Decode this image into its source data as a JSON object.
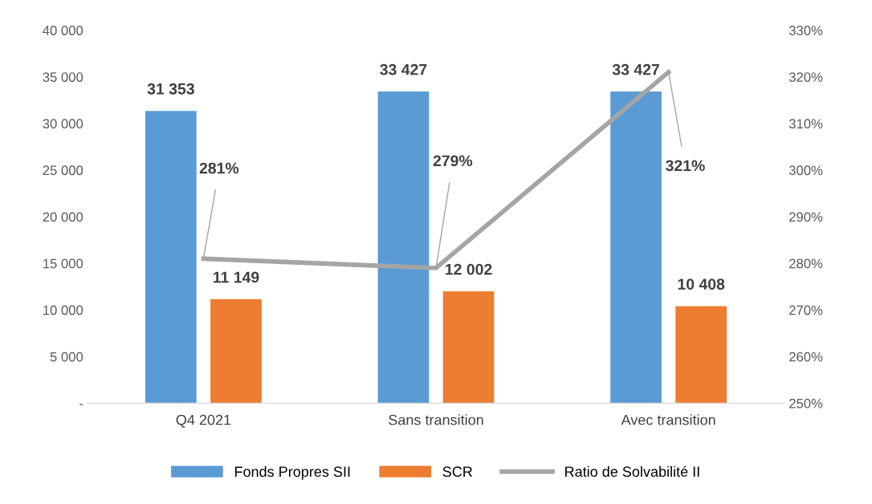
{
  "chart_data": {
    "type": "bar",
    "categories": [
      "Q4 2021",
      "Sans transition",
      "Avec transition"
    ],
    "series": [
      {
        "name": "Fonds Propres SII",
        "color": "#5b9bd5",
        "values": [
          31353,
          33427,
          33427
        ],
        "value_labels": [
          "31 353",
          "33 427",
          "33 427"
        ]
      },
      {
        "name": "SCR",
        "color": "#ed7d31",
        "values": [
          11149,
          12002,
          10408
        ],
        "value_labels": [
          "11 149",
          "12 002",
          "10 408"
        ]
      },
      {
        "name": "Ratio de Solvabilité II",
        "type": "line",
        "axis": "y2",
        "color": "#a5a5a5",
        "values": [
          281,
          279,
          321
        ],
        "value_labels": [
          "281%",
          "279%",
          "321%"
        ]
      }
    ],
    "ylim": [
      0,
      40000
    ],
    "yticks": [
      {
        "value": 0,
        "label": "-"
      },
      {
        "value": 5000,
        "label": "5 000"
      },
      {
        "value": 10000,
        "label": "10 000"
      },
      {
        "value": 15000,
        "label": "15 000"
      },
      {
        "value": 20000,
        "label": "20 000"
      },
      {
        "value": 25000,
        "label": "25 000"
      },
      {
        "value": 30000,
        "label": "30 000"
      },
      {
        "value": 35000,
        "label": "35 000"
      },
      {
        "value": 40000,
        "label": "40 000"
      }
    ],
    "y2lim": [
      250,
      330
    ],
    "y2ticks": [
      {
        "value": 250,
        "label": "250%"
      },
      {
        "value": 260,
        "label": "260%"
      },
      {
        "value": 270,
        "label": "270%"
      },
      {
        "value": 280,
        "label": "280%"
      },
      {
        "value": 290,
        "label": "290%"
      },
      {
        "value": 300,
        "label": "300%"
      },
      {
        "value": 310,
        "label": "310%"
      },
      {
        "value": 320,
        "label": "320%"
      },
      {
        "value": 330,
        "label": "330%"
      }
    ],
    "grid": false,
    "legend": "bottom",
    "marker": "none",
    "line_style": "solid"
  }
}
